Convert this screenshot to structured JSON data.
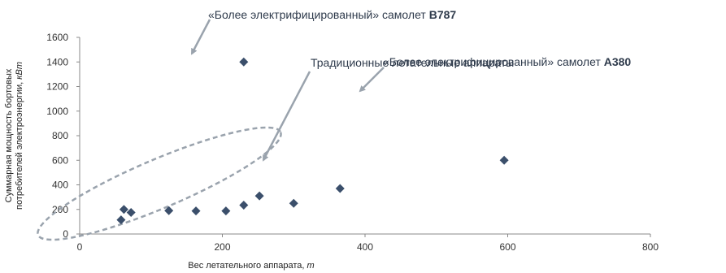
{
  "chart_data": {
    "type": "scatter",
    "xlabel": "Вес летательного аппарата, ",
    "xlabel_unit": "т",
    "ylabel_line1": "Суммарная мощность бортовых",
    "ylabel_line2": "потребителей электроэнергии, ",
    "ylabel_unit": "кВт",
    "xlim": [
      0,
      800
    ],
    "ylim": [
      0,
      1600
    ],
    "xticks": [
      "0",
      "200",
      "400",
      "600",
      "800"
    ],
    "yticks": [
      "0",
      "200",
      "400",
      "600",
      "800",
      "1000",
      "1200",
      "1400",
      "1600"
    ],
    "grid": false,
    "marker_color": "#3b4f6b",
    "annotation_color": "#9aa3ad",
    "points": [
      {
        "x": 58,
        "y": 115
      },
      {
        "x": 62,
        "y": 200
      },
      {
        "x": 72,
        "y": 175
      },
      {
        "x": 125,
        "y": 190
      },
      {
        "x": 163,
        "y": 188
      },
      {
        "x": 205,
        "y": 188
      },
      {
        "x": 230,
        "y": 235
      },
      {
        "x": 252,
        "y": 310
      },
      {
        "x": 300,
        "y": 250
      },
      {
        "x": 365,
        "y": 370
      },
      {
        "x": 230,
        "y": 1400
      },
      {
        "x": 595,
        "y": 600
      }
    ],
    "annotations": {
      "b787_prefix": "«Более электрифицированный» самолет ",
      "b787_model": "B787",
      "traditional": "Традиционные летательные аппараты",
      "a380_prefix": "«Более электрифицированный» самолет ",
      "a380_model": "A380"
    }
  }
}
